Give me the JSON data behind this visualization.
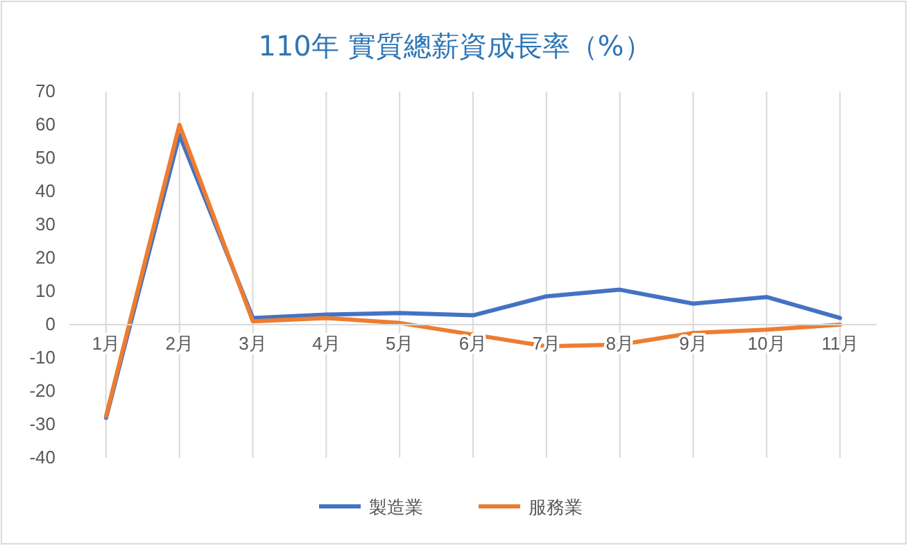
{
  "chart_data": {
    "type": "line",
    "title": "110年 實質總薪資成長率（%）",
    "categories": [
      "1月",
      "2月",
      "3月",
      "4月",
      "5月",
      "6月",
      "7月",
      "8月",
      "9月",
      "10月",
      "11月"
    ],
    "series": [
      {
        "name": "製造業",
        "color": "#4472c4",
        "values": [
          -28,
          57,
          2,
          3,
          3.5,
          2.8,
          8.5,
          10.5,
          6.3,
          8.3,
          2
        ]
      },
      {
        "name": "服務業",
        "color": "#ed7d31",
        "values": [
          -27.5,
          60,
          1,
          2,
          0.5,
          -3,
          -6.5,
          -6,
          -2.5,
          -1.5,
          0
        ]
      }
    ],
    "ylim": [
      -40,
      70
    ],
    "yticks": [
      -40,
      -30,
      -20,
      -10,
      0,
      10,
      20,
      30,
      40,
      50,
      60,
      70
    ],
    "grid": "x",
    "legend": "bottom",
    "marker": "none",
    "line_style": "solid"
  }
}
